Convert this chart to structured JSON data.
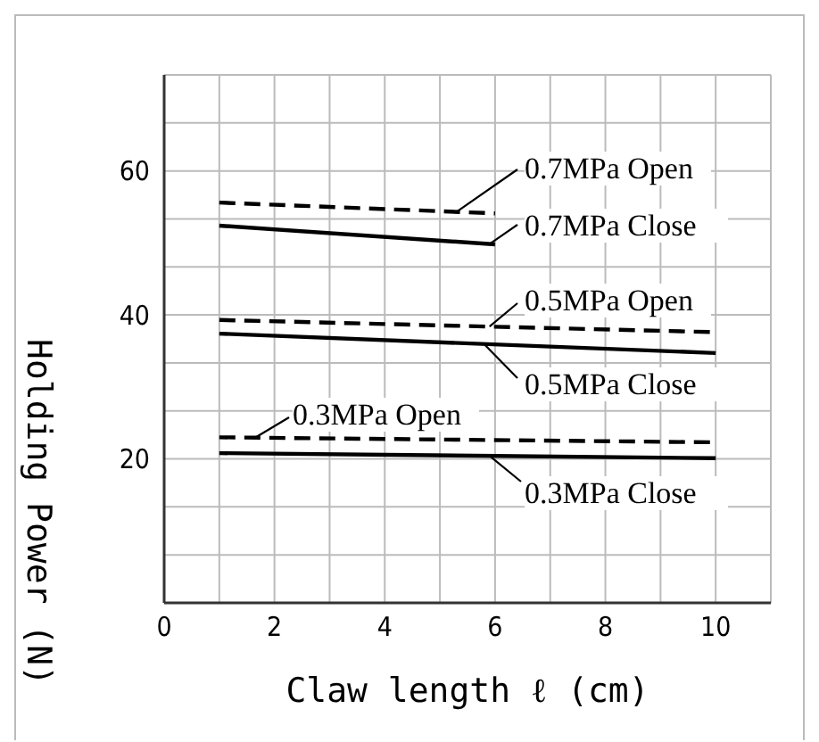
{
  "chart_data": {
    "type": "line",
    "xlabel": "Claw length ℓ (cm)",
    "ylabel": "Holding Power (N)",
    "xlim": [
      0,
      11
    ],
    "ylim": [
      0,
      73.333
    ],
    "xticks": [
      0,
      {
        "value": 1,
        "label": null
      },
      2,
      {
        "value": 3,
        "label": null
      },
      4,
      {
        "value": 5,
        "label": null
      },
      6,
      {
        "value": 7,
        "label": null
      },
      8,
      {
        "value": 9,
        "label": null
      },
      10
    ],
    "yticks": [
      {
        "value": 6.667,
        "label": null
      },
      {
        "value": 13.333,
        "label": null
      },
      20,
      {
        "value": 26.667,
        "label": null
      },
      {
        "value": 33.333,
        "label": null
      },
      40,
      {
        "value": 46.667,
        "label": null
      },
      {
        "value": 53.333,
        "label": null
      },
      60,
      {
        "value": 66.667,
        "label": null
      }
    ],
    "grid": true,
    "legend": "right",
    "marker": "none",
    "series": [
      {
        "name": "0.7MPa Open",
        "color": "#000000",
        "line_style": "dashed",
        "x": [
          1,
          6
        ],
        "values": [
          55.6,
          54.1
        ]
      },
      {
        "name": "0.7MPa Close",
        "color": "#000000",
        "line_style": "solid",
        "x": [
          1,
          6
        ],
        "values": [
          52.4,
          49.8
        ]
      },
      {
        "name": "0.5MPa Open",
        "color": "#000000",
        "line_style": "dashed",
        "x": [
          1,
          10
        ],
        "values": [
          39.3,
          37.6
        ]
      },
      {
        "name": "0.5MPa Close",
        "color": "#000000",
        "line_style": "solid",
        "x": [
          1,
          10
        ],
        "values": [
          37.4,
          34.7
        ]
      },
      {
        "name": "0.3MPa Open",
        "color": "#000000",
        "line_style": "dashed",
        "x": [
          1,
          10
        ],
        "values": [
          23.0,
          22.3
        ]
      },
      {
        "name": "0.3MPa Close",
        "color": "#000000",
        "line_style": "solid",
        "x": [
          1,
          10
        ],
        "values": [
          20.8,
          20.1
        ]
      }
    ]
  }
}
